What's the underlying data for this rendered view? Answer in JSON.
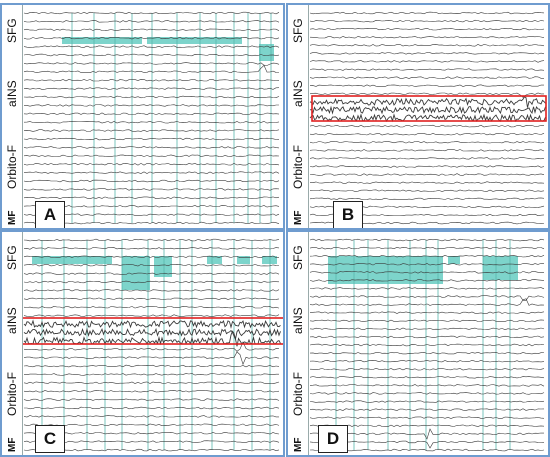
{
  "panels": [
    {
      "id": "a",
      "letter": "A",
      "regions": [
        {
          "label": "SFG",
          "type": "normal"
        },
        {
          "label": "aINS",
          "type": "normal"
        },
        {
          "label": "Orbito-F",
          "type": "normal"
        },
        {
          "label": "MF",
          "type": "mf"
        }
      ],
      "highlight_row": false,
      "seed": 11
    },
    {
      "id": "b",
      "letter": "B",
      "regions": [
        {
          "label": "SFG",
          "type": "normal"
        },
        {
          "label": "aINS",
          "type": "normal"
        },
        {
          "label": "Orbito-F",
          "type": "normal"
        },
        {
          "label": "MF",
          "type": "mf"
        }
      ],
      "highlight_row": true,
      "seed": 23
    },
    {
      "id": "c",
      "letter": "C",
      "regions": [
        {
          "label": "SFG",
          "type": "normal"
        },
        {
          "label": "aINS",
          "type": "normal"
        },
        {
          "label": "Orbito-F",
          "type": "normal"
        },
        {
          "label": "MF",
          "type": "mf"
        }
      ],
      "highlight_row": true,
      "seed": 37
    },
    {
      "id": "d",
      "letter": "D",
      "regions": [
        {
          "label": "SFG",
          "type": "normal"
        },
        {
          "label": "aINS",
          "type": "normal"
        },
        {
          "label": "Orbito-F",
          "type": "normal"
        },
        {
          "label": "MF",
          "type": "mf"
        }
      ],
      "highlight_row": false,
      "seed": 53
    }
  ],
  "colors": {
    "panel_border": "#6f9ccf",
    "trace": "#3a3a3a",
    "teal_marker": "#6fcfc5",
    "gridline": "#59b8ad",
    "highlight_box": "#e02020"
  }
}
